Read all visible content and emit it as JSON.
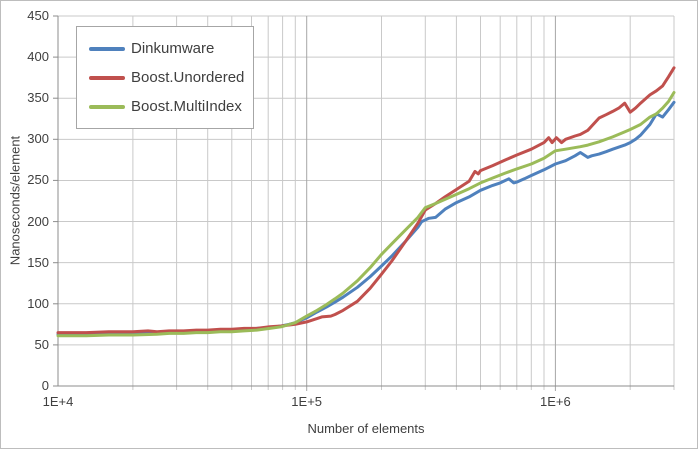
{
  "chart_data": {
    "type": "line",
    "title": "",
    "xlabel": "Number of elements",
    "ylabel": "Nanoseconds/element",
    "x_scale": "log",
    "xlim": [
      10000,
      3000000
    ],
    "ylim": [
      0,
      450
    ],
    "grid": true,
    "legend_position": "top-left",
    "y_ticks": [
      "0",
      "50",
      "100",
      "150",
      "200",
      "250",
      "300",
      "350",
      "400",
      "450"
    ],
    "x_ticks": [
      {
        "label": "1E+4",
        "value": 10000
      },
      {
        "label": "1E+5",
        "value": 100000
      },
      {
        "label": "1E+6",
        "value": 1000000
      }
    ],
    "colors": {
      "grid_minor": "#C9C9C9",
      "grid_major": "#A6A6A6",
      "axis": "#8C8C8C",
      "text": "#3F3F3F"
    },
    "series": [
      {
        "name": "Dinkumware",
        "color": "#4F81BD",
        "points": [
          [
            10000,
            63
          ],
          [
            12000,
            64
          ],
          [
            13000,
            63
          ],
          [
            16000,
            64
          ],
          [
            20000,
            64
          ],
          [
            23000,
            65
          ],
          [
            25000,
            64
          ],
          [
            28000,
            65
          ],
          [
            32000,
            66
          ],
          [
            36000,
            66
          ],
          [
            40000,
            67
          ],
          [
            45000,
            67
          ],
          [
            50000,
            68
          ],
          [
            56000,
            69
          ],
          [
            63000,
            70
          ],
          [
            71000,
            71
          ],
          [
            79000,
            73
          ],
          [
            85000,
            75
          ],
          [
            90000,
            77
          ],
          [
            100000,
            83
          ],
          [
            110000,
            90
          ],
          [
            120000,
            96
          ],
          [
            130000,
            102
          ],
          [
            140000,
            108
          ],
          [
            160000,
            120
          ],
          [
            180000,
            133
          ],
          [
            200000,
            146
          ],
          [
            220000,
            158
          ],
          [
            250000,
            176
          ],
          [
            280000,
            193
          ],
          [
            290000,
            200
          ],
          [
            310000,
            204
          ],
          [
            330000,
            205
          ],
          [
            360000,
            215
          ],
          [
            400000,
            223
          ],
          [
            450000,
            230
          ],
          [
            500000,
            238
          ],
          [
            560000,
            244
          ],
          [
            600000,
            247
          ],
          [
            650000,
            252
          ],
          [
            680000,
            247
          ],
          [
            700000,
            248
          ],
          [
            750000,
            252
          ],
          [
            800000,
            256
          ],
          [
            900000,
            263
          ],
          [
            1000000,
            270
          ],
          [
            1100000,
            274
          ],
          [
            1200000,
            280
          ],
          [
            1260000,
            284
          ],
          [
            1350000,
            278
          ],
          [
            1400000,
            280
          ],
          [
            1500000,
            282
          ],
          [
            1600000,
            285
          ],
          [
            1700000,
            288
          ],
          [
            1900000,
            293
          ],
          [
            2000000,
            296
          ],
          [
            2100000,
            300
          ],
          [
            2200000,
            305
          ],
          [
            2400000,
            318
          ],
          [
            2550000,
            331
          ],
          [
            2700000,
            327
          ],
          [
            2850000,
            336
          ],
          [
            3000000,
            345
          ]
        ]
      },
      {
        "name": "Boost.Unordered",
        "color": "#C0504D",
        "points": [
          [
            10000,
            65
          ],
          [
            13000,
            65
          ],
          [
            16000,
            66
          ],
          [
            20000,
            66
          ],
          [
            23000,
            67
          ],
          [
            25000,
            66
          ],
          [
            28000,
            67
          ],
          [
            32000,
            67
          ],
          [
            36000,
            68
          ],
          [
            40000,
            68
          ],
          [
            45000,
            69
          ],
          [
            50000,
            69
          ],
          [
            56000,
            70
          ],
          [
            63000,
            70
          ],
          [
            71000,
            72
          ],
          [
            79000,
            73
          ],
          [
            90000,
            75
          ],
          [
            100000,
            78
          ],
          [
            110000,
            82
          ],
          [
            115000,
            84
          ],
          [
            125000,
            85
          ],
          [
            130000,
            87
          ],
          [
            140000,
            92
          ],
          [
            160000,
            103
          ],
          [
            180000,
            119
          ],
          [
            200000,
            136
          ],
          [
            220000,
            152
          ],
          [
            250000,
            176
          ],
          [
            280000,
            198
          ],
          [
            300000,
            214
          ],
          [
            330000,
            222
          ],
          [
            360000,
            230
          ],
          [
            400000,
            239
          ],
          [
            450000,
            249
          ],
          [
            475000,
            261
          ],
          [
            490000,
            258
          ],
          [
            500000,
            262
          ],
          [
            560000,
            268
          ],
          [
            630000,
            275
          ],
          [
            700000,
            281
          ],
          [
            800000,
            288
          ],
          [
            900000,
            296
          ],
          [
            940000,
            302
          ],
          [
            970000,
            296
          ],
          [
            1010000,
            302
          ],
          [
            1060000,
            296
          ],
          [
            1100000,
            300
          ],
          [
            1200000,
            304
          ],
          [
            1260000,
            306
          ],
          [
            1350000,
            311
          ],
          [
            1500000,
            326
          ],
          [
            1600000,
            330
          ],
          [
            1700000,
            334
          ],
          [
            1800000,
            338
          ],
          [
            1900000,
            344
          ],
          [
            2000000,
            333
          ],
          [
            2100000,
            338
          ],
          [
            2200000,
            344
          ],
          [
            2400000,
            354
          ],
          [
            2550000,
            359
          ],
          [
            2700000,
            365
          ],
          [
            2850000,
            376
          ],
          [
            3000000,
            387
          ]
        ]
      },
      {
        "name": "Boost.MultiIndex",
        "color": "#9BBB59",
        "points": [
          [
            10000,
            61
          ],
          [
            13000,
            61
          ],
          [
            16000,
            62
          ],
          [
            20000,
            62
          ],
          [
            25000,
            63
          ],
          [
            28000,
            64
          ],
          [
            32000,
            64
          ],
          [
            36000,
            65
          ],
          [
            40000,
            65
          ],
          [
            45000,
            66
          ],
          [
            50000,
            66
          ],
          [
            56000,
            67
          ],
          [
            63000,
            68
          ],
          [
            71000,
            70
          ],
          [
            79000,
            72
          ],
          [
            90000,
            77
          ],
          [
            100000,
            85
          ],
          [
            110000,
            92
          ],
          [
            120000,
            99
          ],
          [
            130000,
            106
          ],
          [
            140000,
            113
          ],
          [
            160000,
            128
          ],
          [
            180000,
            144
          ],
          [
            200000,
            160
          ],
          [
            220000,
            173
          ],
          [
            250000,
            190
          ],
          [
            280000,
            205
          ],
          [
            300000,
            217
          ],
          [
            330000,
            222
          ],
          [
            360000,
            227
          ],
          [
            400000,
            233
          ],
          [
            450000,
            240
          ],
          [
            500000,
            247
          ],
          [
            560000,
            253
          ],
          [
            630000,
            259
          ],
          [
            700000,
            264
          ],
          [
            800000,
            270
          ],
          [
            900000,
            277
          ],
          [
            1000000,
            286
          ],
          [
            1100000,
            288
          ],
          [
            1260000,
            291
          ],
          [
            1350000,
            293
          ],
          [
            1500000,
            297
          ],
          [
            1700000,
            303
          ],
          [
            1900000,
            309
          ],
          [
            2000000,
            312
          ],
          [
            2200000,
            318
          ],
          [
            2400000,
            327
          ],
          [
            2550000,
            331
          ],
          [
            2700000,
            338
          ],
          [
            2850000,
            346
          ],
          [
            3000000,
            357
          ]
        ]
      }
    ]
  }
}
